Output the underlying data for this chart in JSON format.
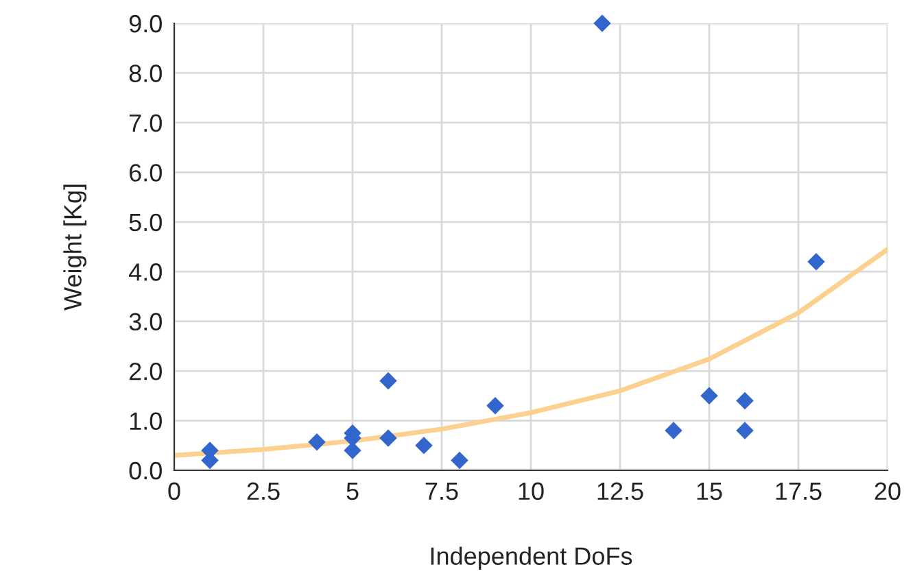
{
  "chart_data": {
    "type": "scatter",
    "xlabel": "Independent DoFs",
    "ylabel": "Weight [Kg]",
    "xlim": [
      0,
      20
    ],
    "xticks": [
      0,
      2.5,
      5,
      7.5,
      10,
      12.5,
      15,
      17.5,
      20
    ],
    "ylim": [
      0,
      9
    ],
    "yticks": [
      {
        "value": 0,
        "label": "0.0"
      },
      {
        "value": 1,
        "label": "1.0"
      },
      {
        "value": 2,
        "label": "2.0"
      },
      {
        "value": 3,
        "label": "3.0"
      },
      {
        "value": 4,
        "label": "4.0"
      },
      {
        "value": 5,
        "label": "5.0"
      },
      {
        "value": 6,
        "label": "6.0"
      },
      {
        "value": 7,
        "label": "7.0"
      },
      {
        "value": 8,
        "label": "8.0"
      },
      {
        "value": 9,
        "label": "9.0"
      }
    ],
    "grid": true,
    "legend": false,
    "series": [
      {
        "marker": "diamond",
        "color": "#3366cc",
        "x": [
          1,
          1,
          4,
          5,
          5,
          5,
          6,
          6,
          7,
          8,
          9,
          12,
          14,
          15,
          16,
          16,
          18
        ],
        "values": [
          0.4,
          0.2,
          0.57,
          0.75,
          0.65,
          0.4,
          1.8,
          0.65,
          0.5,
          0.2,
          1.3,
          9.0,
          0.8,
          1.5,
          1.4,
          0.8,
          4.2
        ]
      },
      {
        "type": "line",
        "color": "#fcd08f",
        "x": [
          0,
          2.5,
          5,
          7.5,
          10,
          12.5,
          15,
          17.5,
          20
        ],
        "values": [
          0.3,
          0.42,
          0.59,
          0.83,
          1.16,
          1.6,
          2.24,
          3.17,
          4.45
        ]
      }
    ]
  }
}
